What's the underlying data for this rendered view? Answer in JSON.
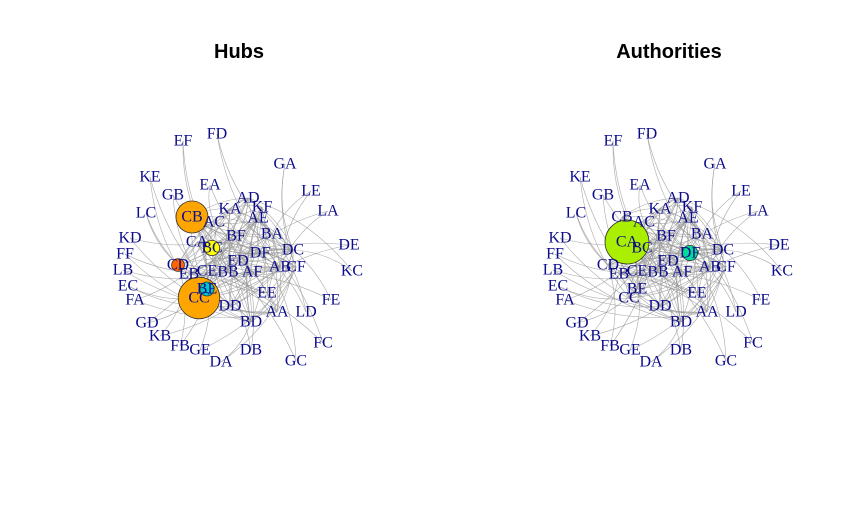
{
  "panels": [
    {
      "title": "Hubs",
      "highlights": [
        {
          "node": "CB",
          "color": "#ffa500",
          "size": 1
        },
        {
          "node": "CC",
          "color": "#ffa500",
          "size": 1.4
        },
        {
          "node": "BC",
          "color": "#ffff00",
          "size": 0.3
        },
        {
          "node": "CD",
          "color": "#ff6600",
          "size": 0.2
        },
        {
          "node": "BE",
          "color": "#00c8c8",
          "size": 0.25
        }
      ]
    },
    {
      "title": "Authorities",
      "highlights": [
        {
          "node": "CA",
          "color": "#aaee00",
          "size": 1.5
        },
        {
          "node": "DF",
          "color": "#00dd99",
          "size": 0.3
        }
      ]
    }
  ],
  "nodes": [
    "FD",
    "EF",
    "GA",
    "KE",
    "EA",
    "GB",
    "AD",
    "LE",
    "KA",
    "KF",
    "LC",
    "CB",
    "AE",
    "LA",
    "AC",
    "BA",
    "KD",
    "CA",
    "BF",
    "DE",
    "BC",
    "DC",
    "FF",
    "DF",
    "ED",
    "LB",
    "CD",
    "CE",
    "BB",
    "AF",
    "AB",
    "CF",
    "KC",
    "EB",
    "EC",
    "BE",
    "EE",
    "FA",
    "CC",
    "DD",
    "FE",
    "AA",
    "LD",
    "GD",
    "BD",
    "KB",
    "FC",
    "FB",
    "GE",
    "DB",
    "DA",
    "GC"
  ]
}
